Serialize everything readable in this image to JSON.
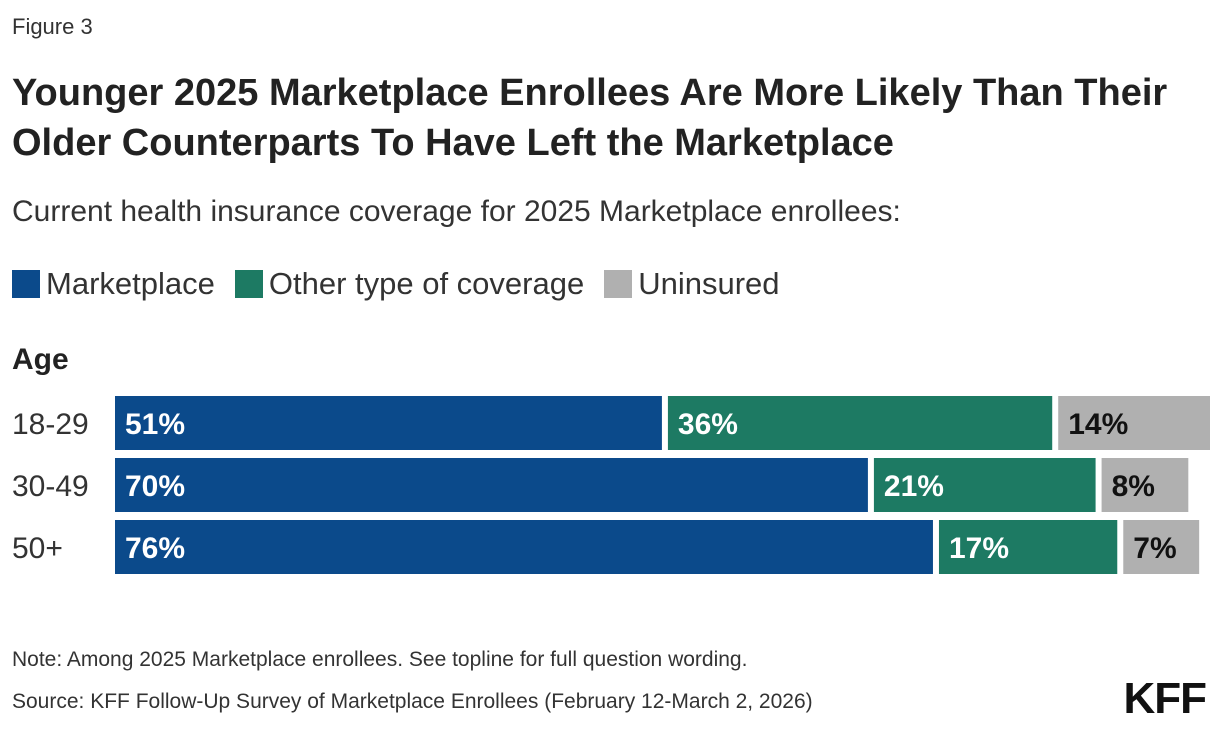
{
  "figure_label": "Figure 3",
  "title": "Younger 2025 Marketplace Enrollees Are More Likely Than Their Older Counterparts To Have Left the Marketplace",
  "subtitle": "Current health insurance coverage for 2025 Marketplace enrollees:",
  "legend": [
    {
      "label": "Marketplace",
      "color": "#0b4a8b"
    },
    {
      "label": "Other type of coverage",
      "color": "#1d7a63"
    },
    {
      "label": "Uninsured",
      "color": "#b0b0b0"
    }
  ],
  "chart_data": {
    "type": "bar",
    "orientation": "horizontal",
    "stacked": true,
    "axis_title": "Age",
    "categories": [
      "18-29",
      "30-49",
      "50+"
    ],
    "series": [
      {
        "name": "Marketplace",
        "values": [
          51,
          70,
          76
        ],
        "labels": [
          "51%",
          "70%",
          "76%"
        ],
        "color": "#0b4a8b",
        "label_color": "#ffffff"
      },
      {
        "name": "Other type of coverage",
        "values": [
          36,
          21,
          17
        ],
        "labels": [
          "36%",
          "21%",
          "17%"
        ],
        "color": "#1d7a63",
        "label_color": "#ffffff"
      },
      {
        "name": "Uninsured",
        "values": [
          14,
          8,
          7
        ],
        "labels": [
          "14%",
          "8%",
          "7%"
        ],
        "color": "#b0b0b0",
        "label_color": "#111111"
      }
    ],
    "xlim": [
      0,
      101
    ],
    "grid": false
  },
  "note": "Note: Among 2025 Marketplace enrollees. See topline for full question wording.",
  "source": "Source: KFF Follow-Up Survey of Marketplace Enrollees (February 12-March 2, 2026)",
  "logo_text": "KFF"
}
